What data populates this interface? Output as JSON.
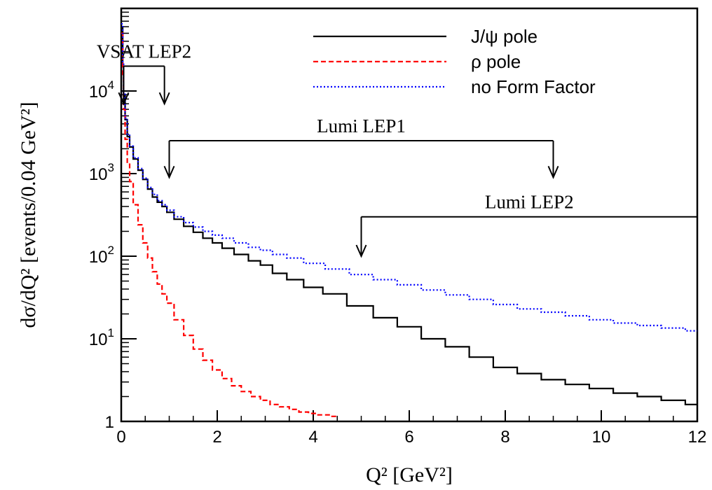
{
  "chart_data": {
    "type": "line",
    "xlabel": "Q² [GeV²]",
    "ylabel": "dσ/dQ² [events/0.04 GeV²]",
    "xlim": [
      0,
      12
    ],
    "ylim": [
      1,
      100000
    ],
    "yscale": "log",
    "grid": false,
    "legend_position": "top-right",
    "x_ticks": [
      "0",
      "2",
      "4",
      "6",
      "8",
      "10",
      "12"
    ],
    "y_ticks": [
      {
        "value": 1,
        "base": "1",
        "exp": ""
      },
      {
        "value": 10,
        "base": "10",
        "exp": "1"
      },
      {
        "value": 100,
        "base": "10",
        "exp": "2"
      },
      {
        "value": 1000,
        "base": "10",
        "exp": "3"
      },
      {
        "value": 10000,
        "base": "10",
        "exp": "4"
      }
    ],
    "series": [
      {
        "name": "J/ψ pole",
        "color": "#000000",
        "dash": "solid",
        "points": [
          [
            0.02,
            60000
          ],
          [
            0.04,
            20000
          ],
          [
            0.06,
            9000
          ],
          [
            0.1,
            4500
          ],
          [
            0.15,
            2800
          ],
          [
            0.2,
            2100
          ],
          [
            0.3,
            1500
          ],
          [
            0.4,
            1100
          ],
          [
            0.5,
            850
          ],
          [
            0.6,
            650
          ],
          [
            0.7,
            520
          ],
          [
            0.8,
            450
          ],
          [
            0.9,
            400
          ],
          [
            1.0,
            340
          ],
          [
            1.2,
            280
          ],
          [
            1.4,
            230
          ],
          [
            1.6,
            195
          ],
          [
            1.8,
            165
          ],
          [
            2.0,
            145
          ],
          [
            2.2,
            125
          ],
          [
            2.5,
            105
          ],
          [
            2.8,
            88
          ],
          [
            3.0,
            78
          ],
          [
            3.3,
            62
          ],
          [
            3.6,
            52
          ],
          [
            4.0,
            42
          ],
          [
            4.4,
            35
          ],
          [
            5.0,
            25
          ],
          [
            5.5,
            18
          ],
          [
            6.0,
            14
          ],
          [
            6.5,
            10
          ],
          [
            7.0,
            8
          ],
          [
            7.5,
            6
          ],
          [
            8.0,
            4.5
          ],
          [
            8.5,
            3.8
          ],
          [
            9.0,
            3.2
          ],
          [
            9.5,
            2.8
          ],
          [
            10.0,
            2.5
          ],
          [
            10.5,
            2.2
          ],
          [
            11.0,
            2.0
          ],
          [
            11.5,
            1.8
          ],
          [
            12.0,
            1.6
          ]
        ]
      },
      {
        "name": "ρ pole",
        "color": "#ff0000",
        "dash": "dashed",
        "points": [
          [
            0.02,
            50000
          ],
          [
            0.04,
            15000
          ],
          [
            0.06,
            6000
          ],
          [
            0.1,
            2600
          ],
          [
            0.15,
            1300
          ],
          [
            0.2,
            800
          ],
          [
            0.3,
            420
          ],
          [
            0.4,
            240
          ],
          [
            0.5,
            145
          ],
          [
            0.6,
            95
          ],
          [
            0.7,
            65
          ],
          [
            0.8,
            46
          ],
          [
            0.9,
            35
          ],
          [
            1.0,
            27
          ],
          [
            1.2,
            17
          ],
          [
            1.4,
            11
          ],
          [
            1.6,
            7.5
          ],
          [
            1.8,
            5.5
          ],
          [
            2.0,
            4.2
          ],
          [
            2.2,
            3.3
          ],
          [
            2.4,
            2.7
          ],
          [
            2.6,
            2.3
          ],
          [
            2.8,
            2.0
          ],
          [
            3.0,
            1.8
          ],
          [
            3.2,
            1.6
          ],
          [
            3.4,
            1.5
          ],
          [
            3.6,
            1.4
          ],
          [
            3.8,
            1.3
          ],
          [
            4.0,
            1.25
          ],
          [
            4.2,
            1.2
          ],
          [
            4.5,
            1.15
          ]
        ]
      },
      {
        "name": "no Form Factor",
        "color": "#0000ff",
        "dash": "dotted",
        "points": [
          [
            0.02,
            65000
          ],
          [
            0.04,
            22000
          ],
          [
            0.06,
            9500
          ],
          [
            0.1,
            4700
          ],
          [
            0.15,
            2900
          ],
          [
            0.2,
            2150
          ],
          [
            0.3,
            1550
          ],
          [
            0.4,
            1150
          ],
          [
            0.5,
            880
          ],
          [
            0.6,
            680
          ],
          [
            0.7,
            560
          ],
          [
            0.8,
            470
          ],
          [
            0.9,
            420
          ],
          [
            1.0,
            360
          ],
          [
            1.2,
            300
          ],
          [
            1.4,
            255
          ],
          [
            1.6,
            225
          ],
          [
            1.8,
            200
          ],
          [
            2.0,
            180
          ],
          [
            2.2,
            165
          ],
          [
            2.5,
            145
          ],
          [
            2.8,
            128
          ],
          [
            3.0,
            118
          ],
          [
            3.3,
            105
          ],
          [
            3.6,
            95
          ],
          [
            4.0,
            82
          ],
          [
            4.5,
            70
          ],
          [
            5.0,
            60
          ],
          [
            5.5,
            52
          ],
          [
            6.0,
            45
          ],
          [
            6.5,
            39
          ],
          [
            7.0,
            34
          ],
          [
            7.5,
            30
          ],
          [
            8.0,
            26
          ],
          [
            8.5,
            23
          ],
          [
            9.0,
            21
          ],
          [
            9.5,
            19
          ],
          [
            10.0,
            17
          ],
          [
            10.5,
            15.5
          ],
          [
            11.0,
            14.5
          ],
          [
            11.5,
            13.5
          ],
          [
            12.0,
            12.5
          ]
        ]
      }
    ],
    "annotations": [
      {
        "text": "VSAT LEP2",
        "x_start": 0.05,
        "x_end": 0.9,
        "y_bar": 20000,
        "y_tip": 7000
      },
      {
        "text": "Lumi LEP1",
        "x_start": 1.0,
        "x_end": 9.0,
        "y_bar": 2500,
        "y_tip": 900
      },
      {
        "text": "Lumi LEP2",
        "x_start": 5.0,
        "x_end": 12.0,
        "y_bar": 300,
        "y_tip": 100
      }
    ]
  }
}
